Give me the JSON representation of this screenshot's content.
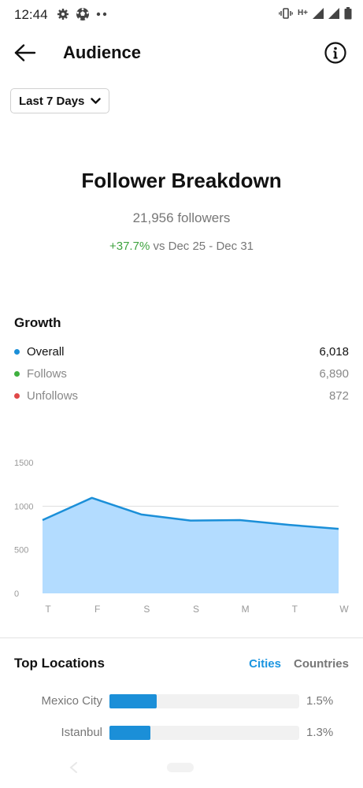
{
  "status_bar": {
    "time": "12:44",
    "network": "H+",
    "icons": [
      "settings-icon",
      "football-icon",
      "more-dots-icon",
      "vibrate-icon",
      "signal-icon",
      "battery-icon"
    ]
  },
  "header": {
    "title": "Audience",
    "back_icon": "arrow-left-icon",
    "info_icon": "info-icon"
  },
  "date_filter": {
    "selected": "Last 7 Days"
  },
  "summary": {
    "title": "Follower Breakdown",
    "followers": "21,956 followers",
    "change_percent": "+37.7%",
    "comparison": " vs Dec 25 - Dec 31"
  },
  "growth": {
    "title": "Growth",
    "rows": [
      {
        "label": "Overall",
        "value": "6,018",
        "color": "#1b8fd8",
        "text_color": "#111111"
      },
      {
        "label": "Follows",
        "value": "6,890",
        "color": "#3fb03f",
        "text_color": "#888888"
      },
      {
        "label": "Unfollows",
        "value": "872",
        "color": "#e04848",
        "text_color": "#888888"
      }
    ]
  },
  "chart_data": {
    "type": "area",
    "categories": [
      "T",
      "F",
      "S",
      "S",
      "M",
      "T",
      "W"
    ],
    "values": [
      840,
      1095,
      905,
      835,
      840,
      785,
      740
    ],
    "y_ticks": [
      "1500",
      "1000",
      "500",
      "0"
    ],
    "ylim": [
      0,
      1500
    ],
    "fill_color": "#b3dcff",
    "line_color": "#1b8fd8",
    "grid": true
  },
  "top_locations": {
    "title": "Top Locations",
    "tabs": [
      {
        "label": "Cities",
        "active": true
      },
      {
        "label": "Countries",
        "active": false
      }
    ],
    "rows": [
      {
        "name": "Mexico City",
        "percent": "1.5%",
        "share": 0.015
      },
      {
        "name": "Istanbul",
        "percent": "1.3%",
        "share": 0.013
      }
    ]
  }
}
